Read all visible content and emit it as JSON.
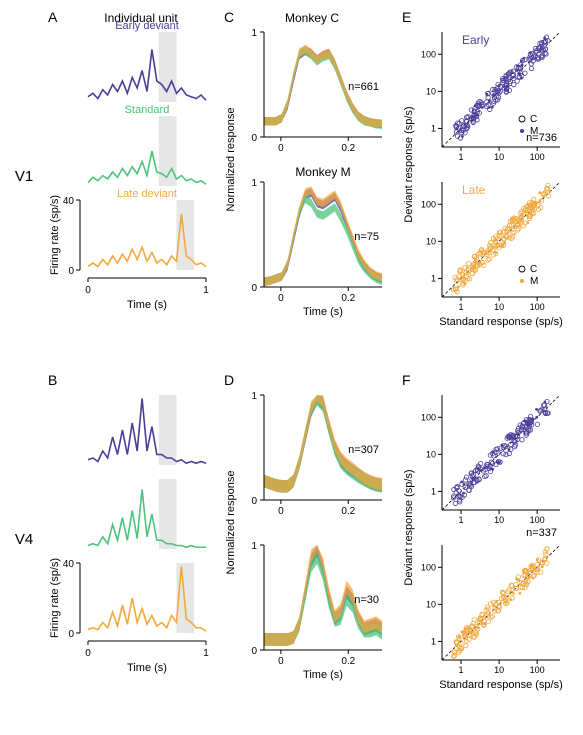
{
  "colors": {
    "early": "#4a3e9a",
    "standard": "#4ac47a",
    "late": "#f2a93c",
    "gray": "#e6e6e6",
    "black": "#000000"
  },
  "panelLabels": {
    "A": "A",
    "B": "B",
    "C": "C",
    "D": "D",
    "E": "E",
    "F": "F"
  },
  "rowLabels": {
    "v1": "V1",
    "v4": "V4"
  },
  "headers": {
    "individual": "Individual unit",
    "monkeyC": "Monkey C",
    "monkeyM": "Monkey M",
    "earlyTitle": "Early",
    "lateTitle": "Late"
  },
  "seriesNames": {
    "early": "Early deviant",
    "standard": "Standard",
    "late": "Late deviant"
  },
  "legend": {
    "C": "C",
    "M": "M"
  },
  "axisLabels": {
    "time_s": "Time (s)",
    "time_s2": "Time (s)",
    "firing": "Firing rate (sp/s)",
    "normResp": "Normalized  response",
    "stdResp": "Standard response (sp/s)",
    "devResp": "Deviant response (sp/s)"
  },
  "n": {
    "c_v1": "n=661",
    "m_v1": "n=75",
    "scatter_v1": "n=736",
    "c_v4": "n=307",
    "m_v4": "n=30",
    "scatter_v4": "n=337"
  },
  "panelA": {
    "y_max": 40,
    "y_ticks": [
      0,
      40
    ],
    "x_min": 0,
    "x_max": 1,
    "x_ticks": [
      0,
      1
    ],
    "scale_bar": [
      0,
      40
    ],
    "highlight_from": 0.6,
    "highlight_to": 0.75,
    "late_highlight_from": 0.75,
    "late_highlight_to": 0.9,
    "traces": {
      "early": [
        3,
        5,
        2,
        7,
        4,
        10,
        6,
        12,
        5,
        14,
        8,
        18,
        6,
        30,
        12,
        10,
        6,
        12,
        5,
        8,
        4,
        3,
        2,
        4,
        1
      ],
      "standard": [
        2,
        5,
        3,
        6,
        4,
        8,
        5,
        10,
        6,
        11,
        7,
        14,
        6,
        20,
        8,
        7,
        5,
        10,
        4,
        6,
        3,
        4,
        2,
        3,
        1
      ],
      "late": [
        2,
        4,
        2,
        6,
        3,
        8,
        4,
        9,
        5,
        12,
        6,
        13,
        5,
        10,
        4,
        6,
        3,
        8,
        5,
        32,
        8,
        6,
        3,
        4,
        2
      ]
    }
  },
  "panelB": {
    "y_max": 40,
    "y_ticks": [
      0,
      40
    ],
    "x_min": 0,
    "x_max": 1,
    "x_ticks": [
      0,
      1
    ],
    "scale_bar": [
      0,
      40
    ],
    "highlight_from": 0.6,
    "highlight_to": 0.75,
    "late_highlight_from": 0.75,
    "late_highlight_to": 0.9,
    "traces": {
      "early": [
        3,
        4,
        2,
        8,
        4,
        16,
        6,
        20,
        6,
        24,
        8,
        38,
        8,
        22,
        6,
        6,
        4,
        4,
        2,
        3,
        1,
        2,
        1,
        2,
        1
      ],
      "standard": [
        2,
        3,
        2,
        7,
        3,
        14,
        5,
        18,
        5,
        22,
        6,
        34,
        7,
        20,
        5,
        5,
        3,
        3,
        2,
        2,
        1,
        2,
        1,
        1,
        1
      ],
      "late": [
        2,
        3,
        2,
        6,
        3,
        12,
        4,
        16,
        5,
        20,
        6,
        14,
        5,
        10,
        4,
        6,
        3,
        10,
        6,
        38,
        8,
        6,
        3,
        3,
        1
      ]
    }
  },
  "panelC": {
    "x_min": -0.05,
    "x_max": 0.3,
    "x_ticks": [
      0,
      0.2
    ],
    "y_ticks_top": [
      0,
      1
    ],
    "y_ticks_bot": [
      0,
      1
    ],
    "top": {
      "early": [
        0.15,
        0.15,
        0.15,
        0.18,
        0.3,
        0.55,
        0.78,
        0.82,
        0.8,
        0.74,
        0.78,
        0.8,
        0.7,
        0.55,
        0.4,
        0.28,
        0.2,
        0.16,
        0.14,
        0.13,
        0.12
      ],
      "standard": [
        0.15,
        0.15,
        0.15,
        0.18,
        0.32,
        0.58,
        0.8,
        0.82,
        0.78,
        0.72,
        0.76,
        0.78,
        0.68,
        0.53,
        0.38,
        0.27,
        0.19,
        0.15,
        0.14,
        0.12,
        0.12
      ],
      "late": [
        0.15,
        0.15,
        0.15,
        0.18,
        0.32,
        0.58,
        0.8,
        0.84,
        0.8,
        0.74,
        0.78,
        0.8,
        0.7,
        0.55,
        0.4,
        0.29,
        0.2,
        0.16,
        0.14,
        0.13,
        0.13
      ]
    },
    "bot": {
      "early": [
        0.05,
        0.06,
        0.08,
        0.1,
        0.2,
        0.45,
        0.7,
        0.88,
        0.9,
        0.8,
        0.78,
        0.82,
        0.86,
        0.75,
        0.6,
        0.45,
        0.3,
        0.2,
        0.14,
        0.1,
        0.08
      ],
      "standard": [
        0.05,
        0.06,
        0.08,
        0.1,
        0.22,
        0.48,
        0.72,
        0.84,
        0.8,
        0.7,
        0.68,
        0.72,
        0.76,
        0.66,
        0.54,
        0.4,
        0.26,
        0.18,
        0.12,
        0.08,
        0.06
      ],
      "late": [
        0.05,
        0.06,
        0.08,
        0.1,
        0.22,
        0.48,
        0.74,
        0.9,
        0.92,
        0.82,
        0.8,
        0.84,
        0.88,
        0.78,
        0.62,
        0.47,
        0.32,
        0.22,
        0.15,
        0.11,
        0.09
      ]
    },
    "sem": 0.04
  },
  "panelD": {
    "x_min": -0.05,
    "x_max": 0.3,
    "x_ticks": [
      0,
      0.2
    ],
    "y_ticks_top": [
      0,
      1
    ],
    "y_ticks_bot": [
      0,
      1
    ],
    "top": {
      "early": [
        0.18,
        0.16,
        0.14,
        0.13,
        0.13,
        0.18,
        0.35,
        0.6,
        0.85,
        0.98,
        0.92,
        0.7,
        0.5,
        0.38,
        0.32,
        0.28,
        0.24,
        0.2,
        0.17,
        0.15,
        0.14
      ],
      "standard": [
        0.18,
        0.16,
        0.14,
        0.13,
        0.13,
        0.18,
        0.36,
        0.62,
        0.86,
        0.96,
        0.9,
        0.68,
        0.48,
        0.36,
        0.3,
        0.26,
        0.22,
        0.19,
        0.16,
        0.14,
        0.13
      ],
      "late": [
        0.18,
        0.16,
        0.14,
        0.13,
        0.13,
        0.18,
        0.36,
        0.62,
        0.88,
        1.0,
        0.94,
        0.72,
        0.52,
        0.4,
        0.34,
        0.3,
        0.25,
        0.21,
        0.18,
        0.16,
        0.15
      ]
    },
    "bot": {
      "early": [
        0.1,
        0.1,
        0.1,
        0.1,
        0.1,
        0.12,
        0.25,
        0.55,
        0.85,
        0.95,
        0.78,
        0.5,
        0.3,
        0.35,
        0.55,
        0.48,
        0.3,
        0.2,
        0.22,
        0.24,
        0.2
      ],
      "standard": [
        0.1,
        0.1,
        0.1,
        0.1,
        0.1,
        0.12,
        0.24,
        0.52,
        0.8,
        0.88,
        0.72,
        0.46,
        0.28,
        0.3,
        0.48,
        0.42,
        0.26,
        0.18,
        0.18,
        0.2,
        0.16
      ],
      "late": [
        0.1,
        0.1,
        0.1,
        0.1,
        0.1,
        0.12,
        0.26,
        0.58,
        0.9,
        1.0,
        0.82,
        0.54,
        0.32,
        0.38,
        0.6,
        0.52,
        0.32,
        0.22,
        0.24,
        0.26,
        0.22
      ]
    },
    "sem": 0.06
  },
  "scatter": {
    "log_min": -0.5,
    "log_max": 2.6,
    "ticks": [
      1,
      10,
      100
    ],
    "E_top_n": 180,
    "E_bot_n": 180,
    "F_top_n": 160,
    "F_bot_n": 160,
    "jitter": 0.25
  }
}
